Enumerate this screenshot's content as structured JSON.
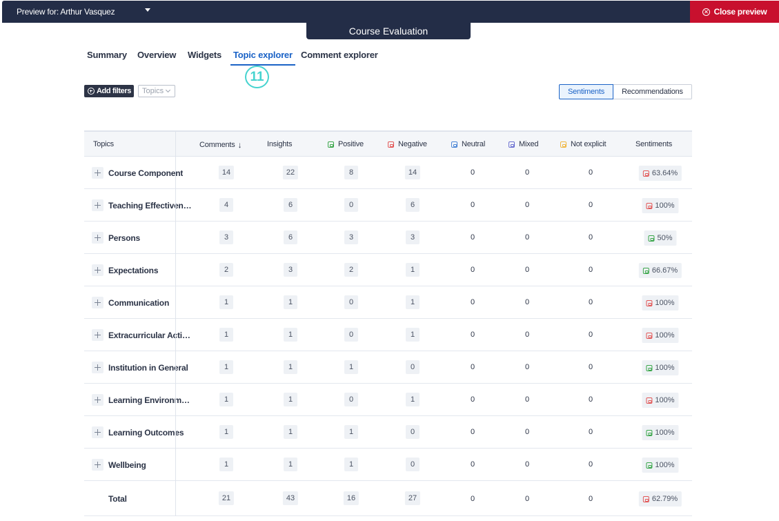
{
  "topbar": {
    "preview_label": "Preview for: Arthur Vasquez",
    "close_label": "Close preview"
  },
  "survey_tab": "Course Evaluation",
  "nav": {
    "tabs": [
      "Summary",
      "Overview",
      "Widgets",
      "Topic explorer",
      "Comment explorer"
    ],
    "active": "Topic explorer"
  },
  "step_marker": "11",
  "filters": {
    "add_label": "Add filters",
    "topics_placeholder": "Topics"
  },
  "view_toggle": {
    "sentiments": "Sentiments",
    "recommendations": "Recommendations",
    "active": "Sentiments"
  },
  "table": {
    "headers": {
      "topics": "Topics",
      "comments": "Comments",
      "insights": "Insights",
      "positive": "Positive",
      "negative": "Negative",
      "neutral": "Neutral",
      "mixed": "Mixed",
      "not_explicit": "Not explicit",
      "sentiments": "Sentiments"
    },
    "colors": {
      "positive": "#3aa64a",
      "negative": "#e25757",
      "neutral": "#4a85d6",
      "mixed": "#6a6fd0",
      "not_explicit": "#f0b640"
    },
    "rows": [
      {
        "topic": "Course Component",
        "comments": "14",
        "insights": "22",
        "positive": "8",
        "negative": "14",
        "neutral": "0",
        "mixed": "0",
        "not_explicit": "0",
        "sentiment": "negative",
        "share": "63.64%"
      },
      {
        "topic": "Teaching Effectiveness",
        "comments": "4",
        "insights": "6",
        "positive": "0",
        "negative": "6",
        "neutral": "0",
        "mixed": "0",
        "not_explicit": "0",
        "sentiment": "negative",
        "share": "100%"
      },
      {
        "topic": "Persons",
        "comments": "3",
        "insights": "6",
        "positive": "3",
        "negative": "3",
        "neutral": "0",
        "mixed": "0",
        "not_explicit": "0",
        "sentiment": "positive",
        "share": "50%"
      },
      {
        "topic": "Expectations",
        "comments": "2",
        "insights": "3",
        "positive": "2",
        "negative": "1",
        "neutral": "0",
        "mixed": "0",
        "not_explicit": "0",
        "sentiment": "positive",
        "share": "66.67%"
      },
      {
        "topic": "Communication",
        "comments": "1",
        "insights": "1",
        "positive": "0",
        "negative": "1",
        "neutral": "0",
        "mixed": "0",
        "not_explicit": "0",
        "sentiment": "negative",
        "share": "100%"
      },
      {
        "topic": "Extracurricular Activities",
        "comments": "1",
        "insights": "1",
        "positive": "0",
        "negative": "1",
        "neutral": "0",
        "mixed": "0",
        "not_explicit": "0",
        "sentiment": "negative",
        "share": "100%"
      },
      {
        "topic": "Institution in General",
        "comments": "1",
        "insights": "1",
        "positive": "1",
        "negative": "0",
        "neutral": "0",
        "mixed": "0",
        "not_explicit": "0",
        "sentiment": "positive",
        "share": "100%"
      },
      {
        "topic": "Learning Environment",
        "comments": "1",
        "insights": "1",
        "positive": "0",
        "negative": "1",
        "neutral": "0",
        "mixed": "0",
        "not_explicit": "0",
        "sentiment": "negative",
        "share": "100%"
      },
      {
        "topic": "Learning Outcomes",
        "comments": "1",
        "insights": "1",
        "positive": "1",
        "negative": "0",
        "neutral": "0",
        "mixed": "0",
        "not_explicit": "0",
        "sentiment": "positive",
        "share": "100%"
      },
      {
        "topic": "Wellbeing",
        "comments": "1",
        "insights": "1",
        "positive": "1",
        "negative": "0",
        "neutral": "0",
        "mixed": "0",
        "not_explicit": "0",
        "sentiment": "positive",
        "share": "100%"
      }
    ],
    "total": {
      "label": "Total",
      "comments": "21",
      "insights": "43",
      "positive": "16",
      "negative": "27",
      "neutral": "0",
      "mixed": "0",
      "not_explicit": "0",
      "sentiment": "negative",
      "share": "62.79%"
    }
  }
}
